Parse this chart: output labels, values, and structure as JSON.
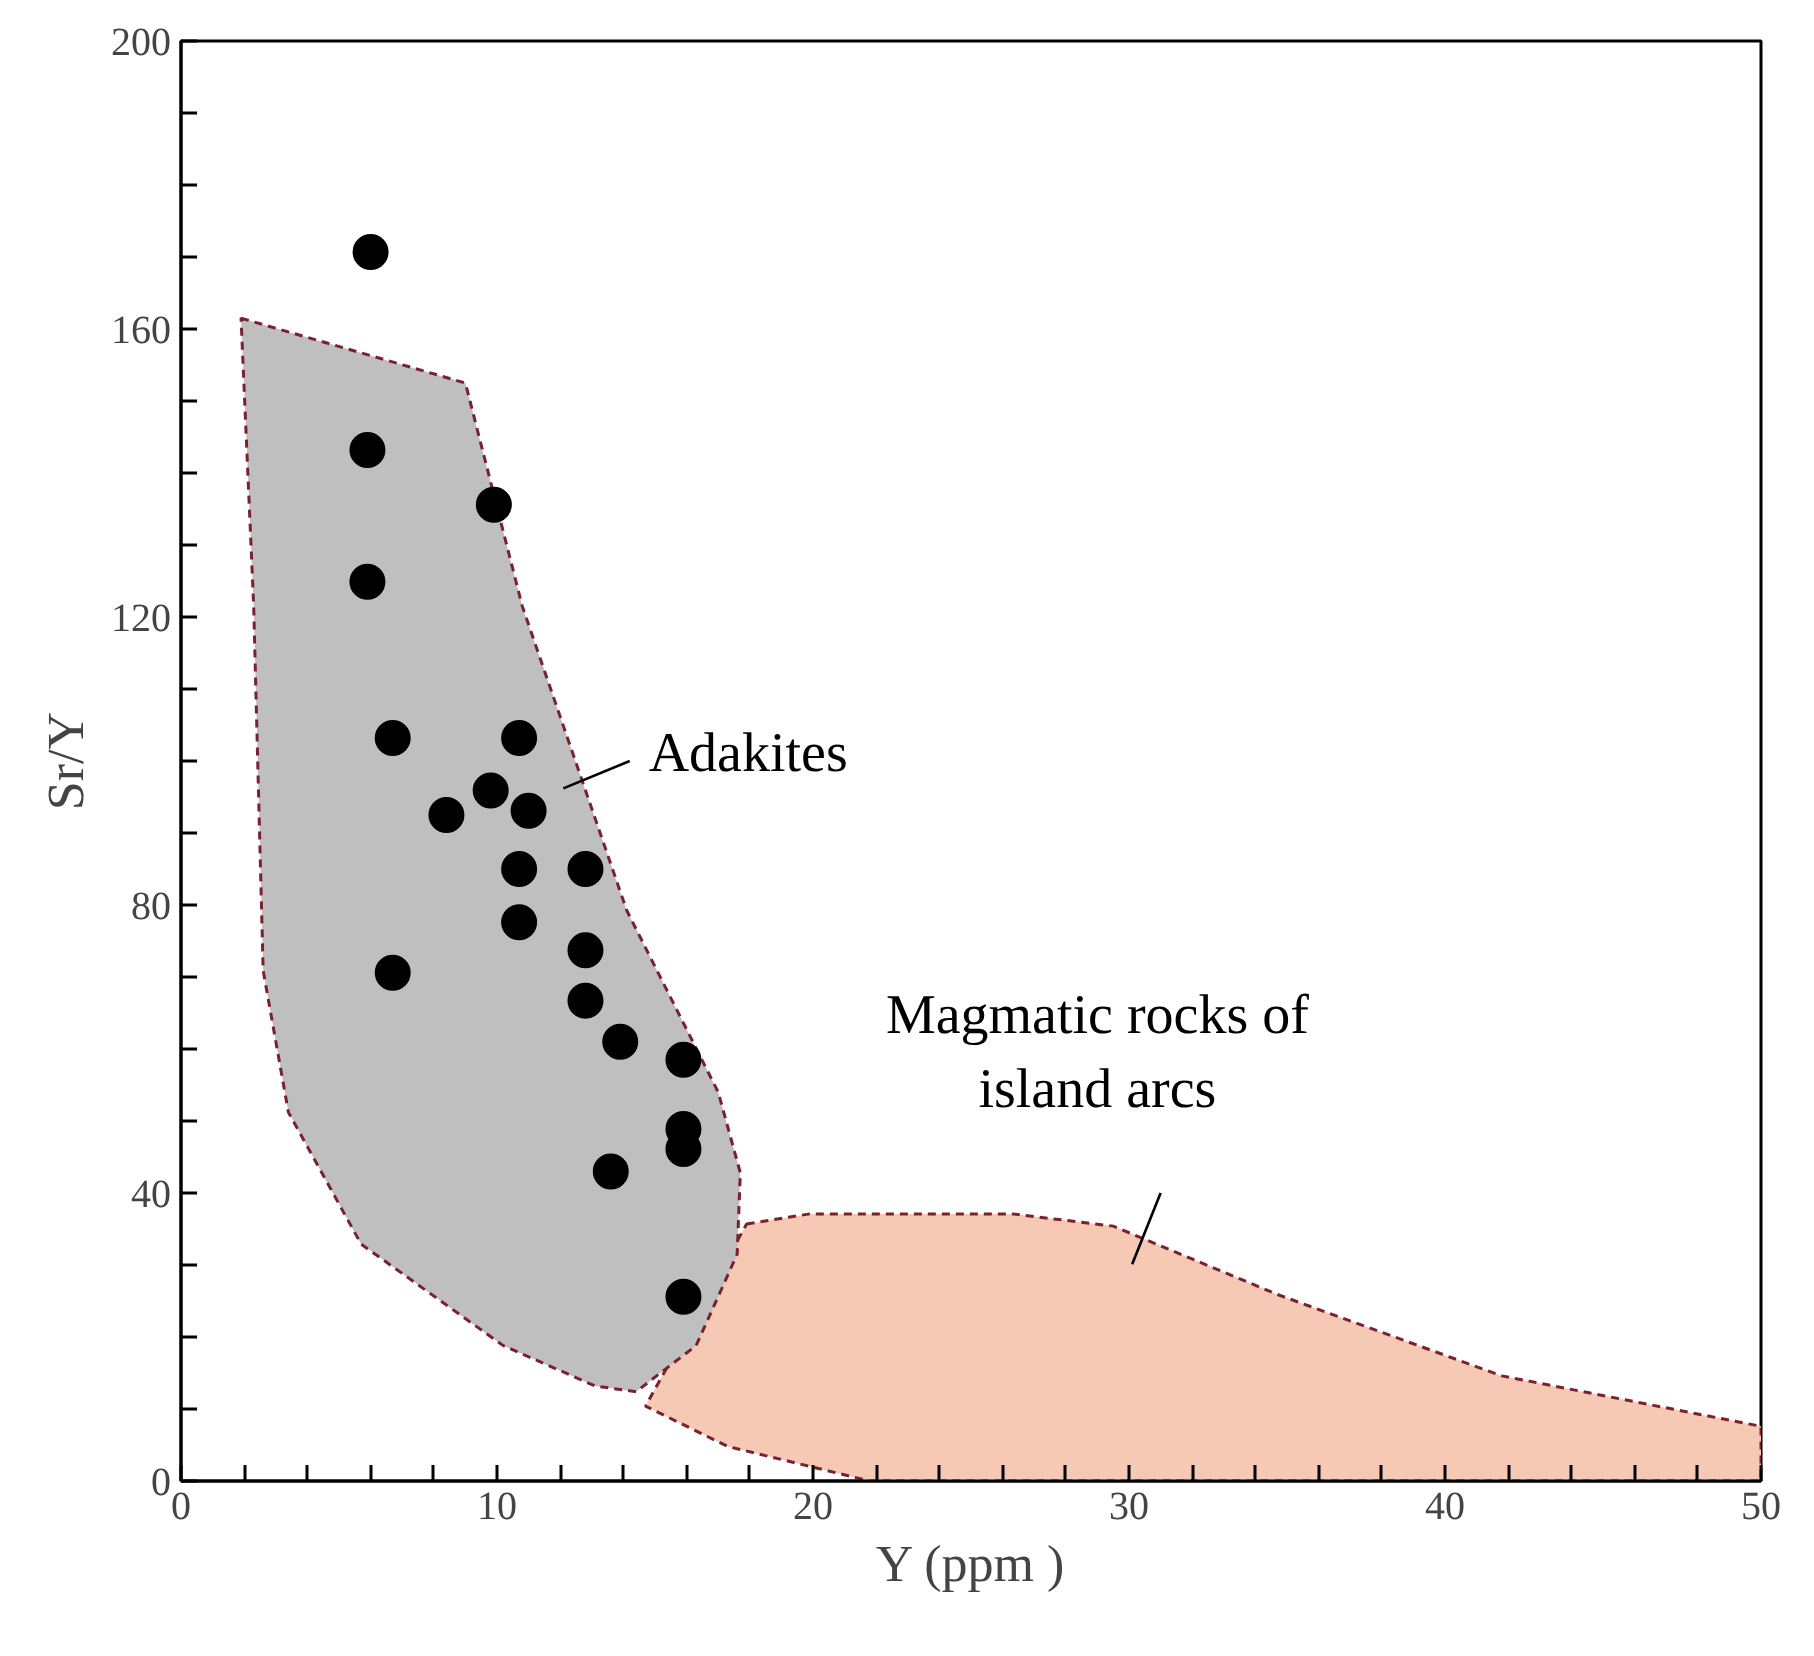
{
  "chart_data": {
    "type": "scatter",
    "xlabel": "Y (ppm )",
    "ylabel": "Sr/Y",
    "xlim": [
      0,
      50
    ],
    "ylim": [
      0,
      200
    ],
    "xticks": [
      0,
      {
        "value": 2,
        "label": null
      },
      {
        "value": 4,
        "label": null
      },
      {
        "value": 6,
        "label": null
      },
      {
        "value": 8,
        "label": null
      },
      10,
      {
        "value": 12,
        "label": null
      },
      {
        "value": 14,
        "label": null
      },
      {
        "value": 16,
        "label": null
      },
      {
        "value": 18,
        "label": null
      },
      20,
      {
        "value": 22,
        "label": null
      },
      {
        "value": 24,
        "label": null
      },
      {
        "value": 26,
        "label": null
      },
      {
        "value": 28,
        "label": null
      },
      30,
      {
        "value": 32,
        "label": null
      },
      {
        "value": 34,
        "label": null
      },
      {
        "value": 36,
        "label": null
      },
      {
        "value": 38,
        "label": null
      },
      40,
      {
        "value": 42,
        "label": null
      },
      {
        "value": 44,
        "label": null
      },
      {
        "value": 46,
        "label": null
      },
      {
        "value": 48,
        "label": null
      },
      50
    ],
    "yticks": [
      0,
      {
        "value": 10,
        "label": null
      },
      {
        "value": 20,
        "label": null
      },
      {
        "value": 30,
        "label": null
      },
      40,
      {
        "value": 50,
        "label": null
      },
      {
        "value": 60,
        "label": null
      },
      {
        "value": 70,
        "label": null
      },
      80,
      {
        "value": 90,
        "label": null
      },
      {
        "value": 100,
        "label": null
      },
      {
        "value": 110,
        "label": null
      },
      120,
      {
        "value": 130,
        "label": null
      },
      {
        "value": 140,
        "label": null
      },
      {
        "value": 150,
        "label": null
      },
      160,
      {
        "value": 170,
        "label": null
      },
      {
        "value": 180,
        "label": null
      },
      {
        "value": 190,
        "label": null
      },
      200
    ],
    "grid": false,
    "series": [
      {
        "type": "area",
        "color": "#f5c9b3",
        "x": [
          17.9,
          19.9,
          26.3,
          29.5,
          34.7,
          41.8,
          50,
          50,
          21.8,
          17.3,
          14.7
        ],
        "values": [
          35.7,
          37.1,
          37.1,
          35.4,
          25.9,
          14.6,
          7.6,
          0,
          0,
          4.8,
          10.4
        ]
      },
      {
        "type": "area",
        "color": "#c0bfc0",
        "x": [
          1.9,
          9.0,
          10.8,
          14.1,
          17.0,
          17.7,
          17.6,
          16.3,
          14.4,
          13.1,
          10.2,
          5.7,
          3.4,
          2.6,
          2.3
        ],
        "values": [
          161.5,
          152.5,
          121.5,
          79.3,
          54,
          42.8,
          31.5,
          18.8,
          12.4,
          13.2,
          18.8,
          32.9,
          51.2,
          70.9,
          121.5
        ]
      },
      {
        "color": "#000000",
        "marker": "circle",
        "x": [
          6.0,
          5.9,
          5.9,
          6.7,
          6.7,
          8.4,
          9.8,
          9.9,
          10.7,
          11.0,
          10.7,
          10.7,
          12.8,
          12.8,
          12.8,
          13.9,
          13.6,
          15.9,
          15.9,
          15.9,
          15.9
        ],
        "values": [
          170.7,
          143.2,
          124.9,
          103.2,
          70.6,
          92.5,
          95.9,
          135.6,
          103.2,
          93.1,
          85.0,
          77.6,
          85.0,
          73.7,
          66.7,
          61.0,
          43.0,
          58.5,
          48.9,
          46.1,
          25.6
        ]
      }
    ],
    "annotations": [
      "Adakites",
      "Magmatic rocks of\nisland arcs"
    ]
  }
}
